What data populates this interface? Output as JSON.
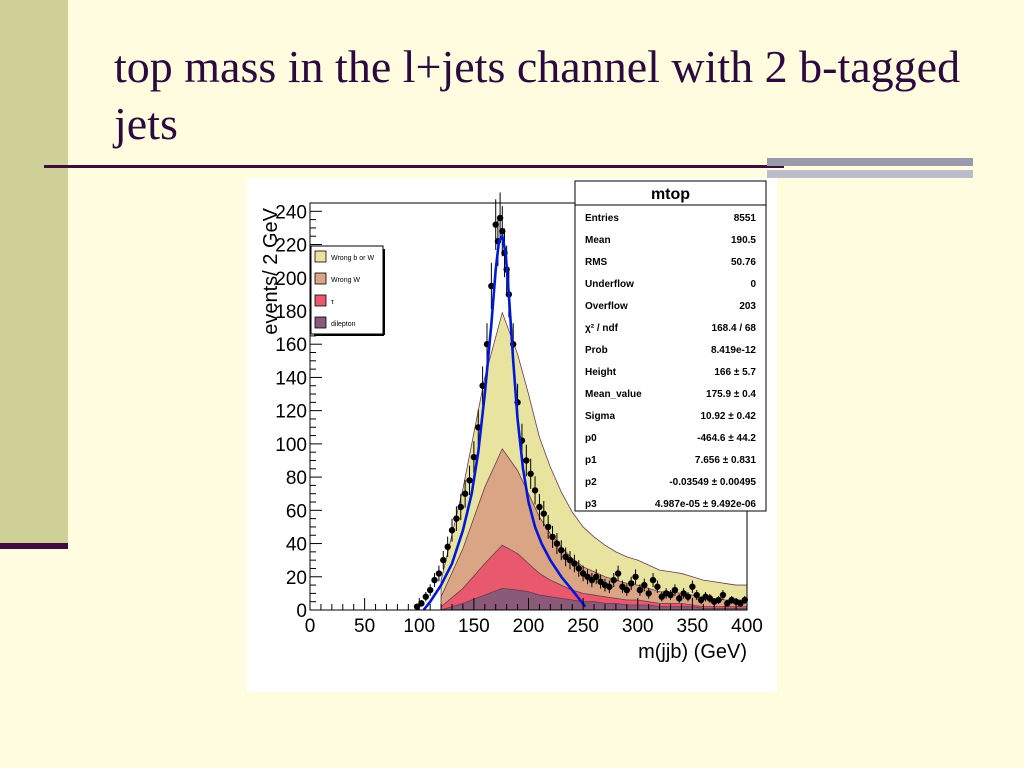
{
  "slide": {
    "title": "top mass in the l+jets channel with 2 b-tagged jets"
  },
  "colors": {
    "background": "#fffce0",
    "title": "#2b0a3f",
    "side_band": "#cfcf98",
    "rule": "#3d0d3d",
    "fit_line": "#0018d8",
    "wrong_b_or_w": "#e8e4a0",
    "wrong_w": "#d9a585",
    "tau": "#e8596e",
    "dilepton": "#8a5a78"
  },
  "chart_data": {
    "type": "histogram",
    "xlabel": "m(jjb) (GeV)",
    "ylabel": "events/ 2 GeV",
    "xlim": [
      0,
      400
    ],
    "ylim": [
      0,
      245
    ],
    "x_ticks": [
      0,
      50,
      100,
      150,
      200,
      250,
      300,
      350,
      400
    ],
    "y_ticks": [
      0,
      20,
      40,
      60,
      80,
      100,
      120,
      140,
      160,
      180,
      200,
      220,
      240
    ],
    "legend": {
      "placement": "top-left",
      "entries": [
        "Wrong b or W",
        "Wrong W",
        "τ",
        "dilepton"
      ]
    },
    "stats_box": {
      "title": "mtop",
      "rows": [
        {
          "label": "Entries",
          "value": "8551"
        },
        {
          "label": "Mean",
          "value": "190.5"
        },
        {
          "label": "RMS",
          "value": "50.76"
        },
        {
          "label": "Underflow",
          "value": "0"
        },
        {
          "label": "Overflow",
          "value": "203"
        },
        {
          "label": "χ² / ndf",
          "value": "168.4 / 68"
        },
        {
          "label": "Prob",
          "value": "8.419e-12"
        },
        {
          "label": "Height",
          "value": "166 ± 5.7"
        },
        {
          "label": "Mean_value",
          "value": "175.9 ± 0.4"
        },
        {
          "label": "Sigma",
          "value": "10.92 ± 0.42"
        },
        {
          "label": "p0",
          "value": "-464.6 ± 44.2"
        },
        {
          "label": "p1",
          "value": "7.656 ± 0.831"
        },
        {
          "label": "p2",
          "value": "-0.03549 ± 0.00495"
        },
        {
          "label": "p3",
          "value": "4.987e-05 ± 9.492e-06"
        }
      ]
    },
    "data_points": {
      "x": [
        98,
        102,
        106,
        110,
        114,
        118,
        122,
        126,
        130,
        134,
        138,
        142,
        146,
        150,
        154,
        158,
        162,
        166,
        170,
        172,
        174,
        176,
        178,
        180,
        182,
        186,
        190,
        194,
        198,
        202,
        206,
        210,
        214,
        218,
        222,
        226,
        230,
        234,
        238,
        242,
        246,
        250,
        254,
        258,
        262,
        266,
        270,
        274,
        278,
        282,
        286,
        290,
        294,
        298,
        302,
        306,
        310,
        314,
        318,
        322,
        326,
        330,
        334,
        338,
        342,
        346,
        350,
        354,
        358,
        362,
        366,
        370,
        374,
        378,
        382,
        386,
        390,
        394,
        398
      ],
      "y": [
        2,
        4,
        8,
        12,
        18,
        22,
        30,
        38,
        48,
        55,
        62,
        70,
        78,
        92,
        110,
        135,
        160,
        195,
        232,
        222,
        236,
        228,
        215,
        205,
        190,
        160,
        125,
        102,
        90,
        82,
        72,
        62,
        58,
        50,
        44,
        40,
        36,
        32,
        30,
        28,
        25,
        22,
        20,
        18,
        20,
        17,
        15,
        14,
        18,
        22,
        14,
        12,
        16,
        20,
        12,
        15,
        10,
        18,
        14,
        8,
        10,
        9,
        12,
        7,
        10,
        8,
        14,
        9,
        6,
        8,
        7,
        5,
        6,
        9,
        4,
        6,
        5,
        4,
        6
      ]
    },
    "fit_curve": {
      "x": [
        104,
        110,
        120,
        130,
        140,
        148,
        154,
        160,
        166,
        170,
        173,
        176,
        179,
        182,
        186,
        190,
        195,
        200,
        206,
        212,
        220,
        230,
        240,
        252
      ],
      "y": [
        0,
        5,
        15,
        28,
        48,
        70,
        95,
        130,
        172,
        205,
        222,
        225,
        215,
        190,
        150,
        115,
        85,
        65,
        50,
        40,
        30,
        20,
        12,
        2
      ]
    },
    "stacked_series": [
      {
        "name": "dilepton",
        "x": [
          120,
          140,
          160,
          176,
          190,
          200,
          210,
          220,
          230,
          240,
          250,
          260,
          270,
          280,
          290,
          300,
          310,
          320,
          330,
          340,
          350,
          360,
          370,
          380,
          390,
          400
        ],
        "y": [
          0,
          4,
          9,
          13,
          12,
          11,
          9,
          8,
          7,
          6,
          5,
          5,
          4,
          4,
          3,
          3,
          3,
          2,
          2,
          2,
          2,
          1,
          1,
          1,
          1,
          1
        ]
      },
      {
        "name": "τ",
        "x": [
          120,
          140,
          160,
          176,
          190,
          200,
          210,
          220,
          230,
          240,
          250,
          260,
          270,
          280,
          290,
          300,
          310,
          320,
          330,
          340,
          350,
          360,
          370,
          380,
          390,
          400
        ],
        "y": [
          2,
          9,
          19,
          26,
          22,
          17,
          13,
          10,
          8,
          6,
          5,
          4,
          4,
          3,
          3,
          3,
          2,
          2,
          2,
          2,
          1,
          1,
          1,
          1,
          1,
          1
        ]
      },
      {
        "name": "Wrong W",
        "x": [
          120,
          140,
          160,
          176,
          190,
          200,
          210,
          220,
          230,
          240,
          250,
          260,
          270,
          280,
          290,
          300,
          310,
          320,
          330,
          340,
          350,
          360,
          370,
          380,
          390,
          400
        ],
        "y": [
          6,
          24,
          46,
          58,
          50,
          42,
          34,
          28,
          23,
          19,
          16,
          14,
          12,
          11,
          10,
          9,
          8,
          7,
          7,
          6,
          6,
          5,
          5,
          4,
          4,
          4
        ]
      },
      {
        "name": "Wrong b or W",
        "x": [
          120,
          140,
          160,
          176,
          190,
          200,
          210,
          220,
          230,
          240,
          250,
          260,
          270,
          280,
          290,
          300,
          310,
          320,
          330,
          340,
          350,
          360,
          370,
          380,
          390,
          400
        ],
        "y": [
          10,
          36,
          66,
          82,
          70,
          60,
          48,
          40,
          33,
          28,
          24,
          21,
          19,
          17,
          16,
          15,
          14,
          13,
          12,
          12,
          11,
          11,
          10,
          10,
          9,
          9
        ]
      }
    ]
  }
}
